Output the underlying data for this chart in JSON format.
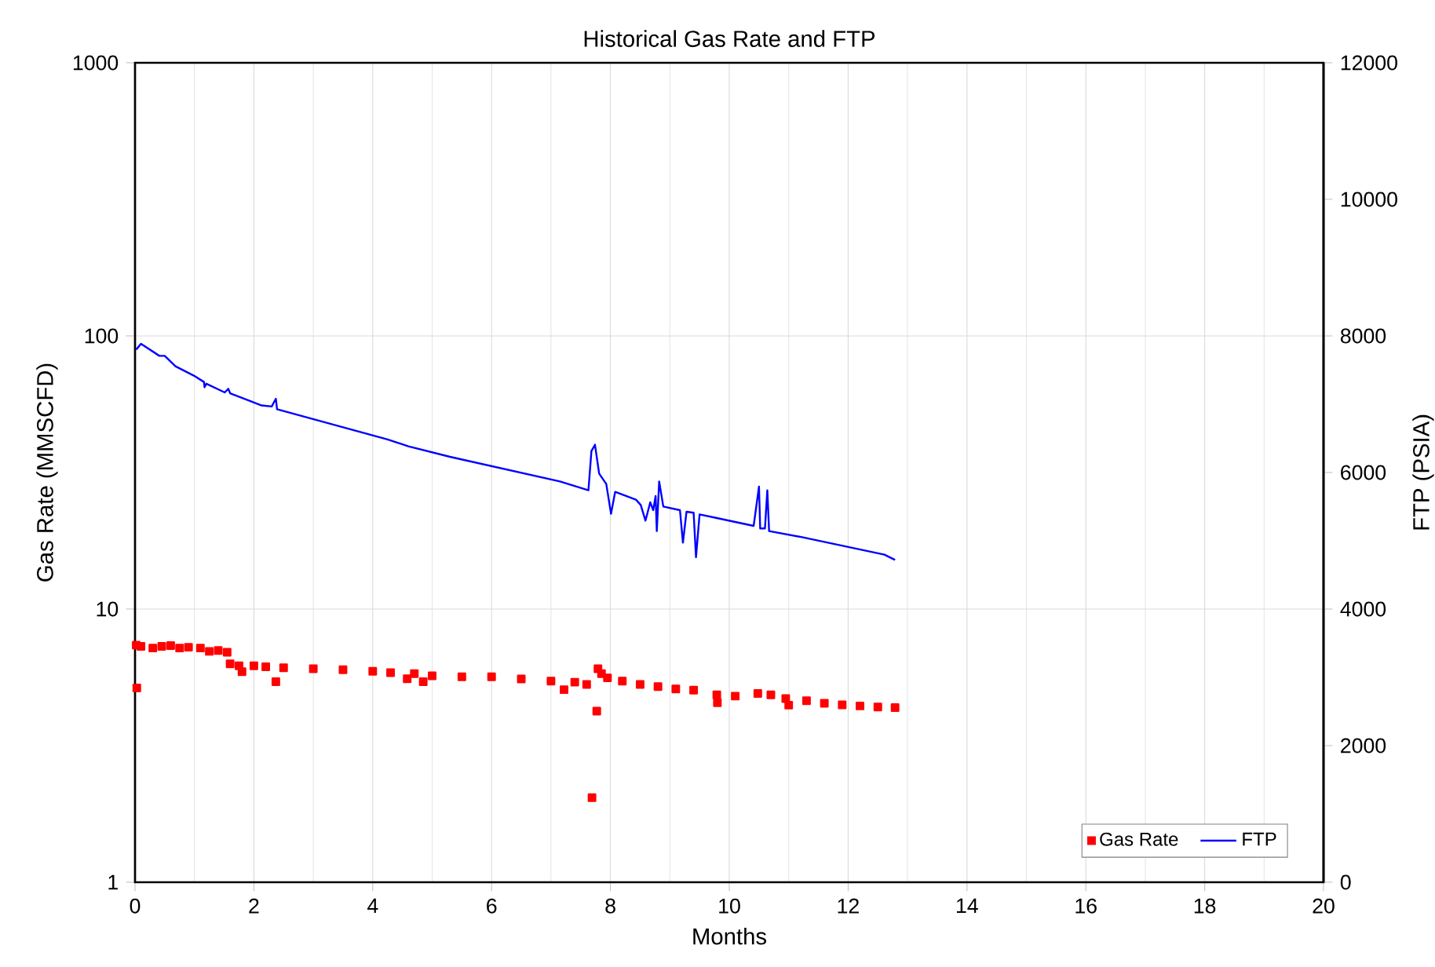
{
  "chart_data": {
    "type": "line",
    "title": "Historical Gas Rate  and FTP",
    "xlabel": "Months",
    "ylabel": "Gas Rate (MMSCFD)",
    "y2label": "FTP  (PSIA)",
    "xlim": [
      0,
      20
    ],
    "xticks": [
      0,
      2,
      4,
      6,
      8,
      10,
      12,
      14,
      16,
      18,
      20
    ],
    "ylim": [
      1,
      1000
    ],
    "yticks": [
      1,
      10,
      100,
      1000
    ],
    "log": "y",
    "y2lim": [
      0,
      12000
    ],
    "y2ticks": [
      0,
      2000,
      4000,
      6000,
      8000,
      10000,
      12000
    ],
    "grid": true,
    "legend": "bottom right",
    "series": [
      {
        "name": "Gas Rate",
        "type": "scatter",
        "marker": "square",
        "color": "#ff0000",
        "x": [
          0.02,
          0.03,
          0.1,
          0.3,
          0.45,
          0.6,
          0.75,
          0.9,
          1.1,
          1.25,
          1.4,
          1.55,
          1.6,
          1.75,
          1.8,
          2.0,
          2.2,
          2.37,
          2.5,
          3.0,
          3.5,
          4.0,
          4.3,
          4.58,
          4.7,
          4.85,
          5.0,
          5.5,
          6.0,
          6.5,
          7.0,
          7.22,
          7.4,
          7.6,
          7.69,
          7.77,
          7.79,
          7.85,
          7.95,
          8.2,
          8.5,
          8.8,
          9.1,
          9.4,
          9.79,
          9.8,
          10.1,
          10.48,
          10.7,
          10.95,
          11.0,
          11.3,
          11.6,
          11.9,
          12.2,
          12.5,
          12.79
        ],
        "values": [
          7.38,
          5.14,
          7.3,
          7.2,
          7.3,
          7.35,
          7.2,
          7.25,
          7.2,
          7.0,
          7.05,
          6.95,
          6.3,
          6.2,
          5.9,
          6.2,
          6.15,
          5.42,
          6.1,
          6.05,
          6.0,
          5.92,
          5.85,
          5.56,
          5.8,
          5.42,
          5.7,
          5.65,
          5.65,
          5.55,
          5.45,
          5.07,
          5.4,
          5.3,
          2.04,
          4.23,
          6.05,
          5.8,
          5.6,
          5.45,
          5.3,
          5.2,
          5.1,
          5.05,
          4.85,
          4.54,
          4.8,
          4.91,
          4.85,
          4.7,
          4.45,
          4.62,
          4.52,
          4.46,
          4.42,
          4.38,
          4.36
        ]
      },
      {
        "name": "FTP",
        "axis": "y2",
        "marker": "none",
        "line_style": "solid",
        "color": "#0000ff",
        "x": [
          0.02,
          0.1,
          0.41,
          0.5,
          0.68,
          0.99,
          1.16,
          1.17,
          1.2,
          1.51,
          1.57,
          1.6,
          2.13,
          2.3,
          2.37,
          2.39,
          4.25,
          4.6,
          5.3,
          7.15,
          7.63,
          7.68,
          7.74,
          7.81,
          7.93,
          8.01,
          8.08,
          8.43,
          8.51,
          8.59,
          8.67,
          8.72,
          8.76,
          8.78,
          8.82,
          8.89,
          9.17,
          9.22,
          9.28,
          9.4,
          9.44,
          9.5,
          9.79,
          10.41,
          10.5,
          10.52,
          10.6,
          10.64,
          10.67,
          11.24,
          12.61,
          12.79
        ],
        "values": [
          7800,
          7885,
          7708,
          7708,
          7556,
          7418,
          7326,
          7249,
          7300,
          7172,
          7225,
          7160,
          6982,
          6966,
          7080,
          6926,
          6483,
          6384,
          6230,
          5869,
          5740,
          6315,
          6407,
          5984,
          5832,
          5395,
          5717,
          5602,
          5524,
          5295,
          5563,
          5448,
          5655,
          5142,
          5869,
          5501,
          5448,
          4972,
          5425,
          5410,
          4759,
          5386,
          5333,
          5218,
          5793,
          5180,
          5180,
          5740,
          5142,
          5050,
          4797,
          4720
        ]
      }
    ]
  }
}
